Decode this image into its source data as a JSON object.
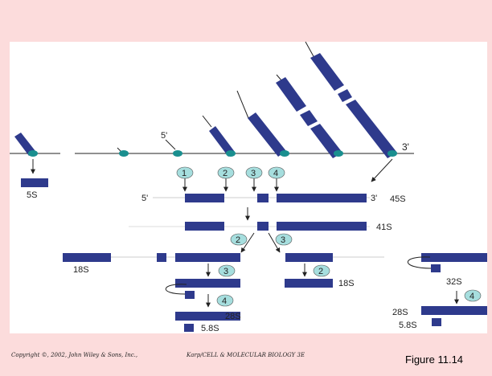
{
  "footer": {
    "copyright": "Copyright ©, 2002, John Wiley & Sons, Inc.,",
    "book": "Karp/CELL & MOLECULAR BIOLOGY 3E",
    "figure": "Figure 11.14"
  },
  "diagram": {
    "gene_end_labels": {
      "five_prime_top": "5'",
      "three_prime_top": "3'",
      "five_prime": "5'",
      "three_prime": "3'"
    },
    "steps": {
      "step1": "1",
      "step2": "2",
      "step3": "3",
      "step4": "4"
    },
    "rna_labels": {
      "five_s": "5S",
      "precursor": "45S",
      "intermediate": "41S",
      "left_18s": "18S",
      "right_18s": "18S",
      "thirty_two_s": "32S",
      "mid_28s": "28S",
      "mid_5_8s": "5.8S",
      "right_28s": "28S",
      "right_5_8s": "5.8S"
    }
  },
  "colors": {
    "background": "#fcdcdc",
    "panel": "#ffffff",
    "rna_bar": "#2e3a8c",
    "polymerase": "#1a8f8f",
    "step_circle": "#a6dede",
    "dna_line": "#222222"
  }
}
